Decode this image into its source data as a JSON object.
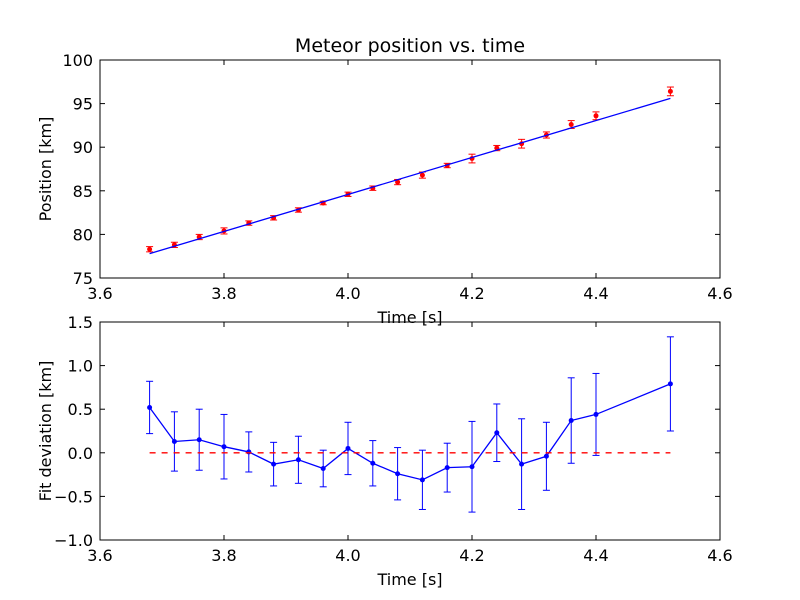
{
  "chart_data": [
    {
      "type": "scatter",
      "title": "Meteor position vs. time",
      "xlabel": "Time [s]",
      "ylabel": "Position [km]",
      "xlim": [
        3.6,
        4.6
      ],
      "ylim": [
        75,
        100
      ],
      "xticks": [
        "3.6",
        "3.8",
        "4.0",
        "4.2",
        "4.4",
        "4.6"
      ],
      "yticks": [
        "75",
        "80",
        "85",
        "90",
        "95",
        "100"
      ],
      "grid": false,
      "series": [
        {
          "kind": "points-with-errorbars",
          "color": "#ff0000",
          "x": [
            3.68,
            3.72,
            3.76,
            3.8,
            3.84,
            3.88,
            3.92,
            3.96,
            4.0,
            4.04,
            4.08,
            4.12,
            4.16,
            4.2,
            4.24,
            4.28,
            4.32,
            4.36,
            4.4,
            4.52
          ],
          "y": [
            78.3,
            78.8,
            79.7,
            80.4,
            81.3,
            81.9,
            82.8,
            83.6,
            84.6,
            85.3,
            86.0,
            86.8,
            87.9,
            88.7,
            89.9,
            90.4,
            91.4,
            92.6,
            93.6,
            96.4
          ],
          "err": [
            0.3,
            0.3,
            0.3,
            0.35,
            0.25,
            0.25,
            0.25,
            0.2,
            0.25,
            0.25,
            0.3,
            0.35,
            0.25,
            0.5,
            0.3,
            0.5,
            0.35,
            0.45,
            0.45,
            0.5
          ]
        },
        {
          "kind": "fit-line",
          "color": "#0000ff",
          "x": [
            3.68,
            4.52
          ],
          "y": [
            77.8,
            95.6
          ]
        }
      ]
    },
    {
      "type": "line",
      "title": "",
      "xlabel": "Time [s]",
      "ylabel": "Fit deviation [km]",
      "xlim": [
        3.6,
        4.6
      ],
      "ylim": [
        -1.0,
        1.5
      ],
      "xticks": [
        "3.6",
        "3.8",
        "4.0",
        "4.2",
        "4.4",
        "4.6"
      ],
      "yticks": [
        "−1.0",
        "−0.5",
        "0.0",
        "0.5",
        "1.0",
        "1.5"
      ],
      "grid": false,
      "series": [
        {
          "kind": "line-with-errorbars",
          "color": "#0000ff",
          "x": [
            3.68,
            3.72,
            3.76,
            3.8,
            3.84,
            3.88,
            3.92,
            3.96,
            4.0,
            4.04,
            4.08,
            4.12,
            4.16,
            4.2,
            4.24,
            4.28,
            4.32,
            4.36,
            4.4,
            4.52
          ],
          "y": [
            0.52,
            0.13,
            0.15,
            0.07,
            0.01,
            -0.13,
            -0.08,
            -0.18,
            0.05,
            -0.12,
            -0.24,
            -0.31,
            -0.17,
            -0.16,
            0.23,
            -0.13,
            -0.04,
            0.37,
            0.44,
            0.79
          ],
          "err": [
            0.3,
            0.34,
            0.35,
            0.37,
            0.23,
            0.25,
            0.27,
            0.21,
            0.3,
            0.26,
            0.3,
            0.34,
            0.28,
            0.52,
            0.33,
            0.52,
            0.39,
            0.49,
            0.47,
            0.54
          ]
        },
        {
          "kind": "dashed-zero-line",
          "color": "#ff0000",
          "x": [
            3.68,
            4.52
          ],
          "y": [
            0,
            0
          ]
        }
      ]
    }
  ]
}
